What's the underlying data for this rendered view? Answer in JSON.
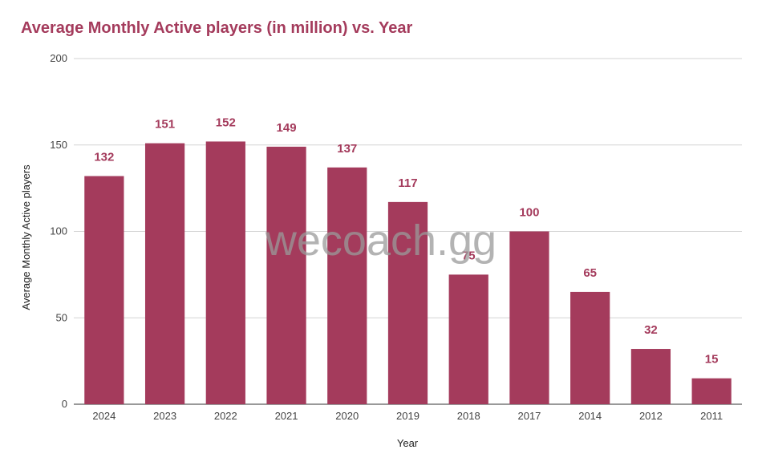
{
  "chart_data": {
    "type": "bar",
    "title": "Average Monthly Active players (in million) vs. Year",
    "xlabel": "Year",
    "ylabel": "Average Monthly Active players",
    "categories": [
      "2024",
      "2023",
      "2022",
      "2021",
      "2020",
      "2019",
      "2018",
      "2017",
      "2014",
      "2012",
      "2011"
    ],
    "values": [
      132,
      151,
      152,
      149,
      137,
      117,
      75,
      100,
      65,
      32,
      15
    ],
    "ylim": [
      0,
      200
    ],
    "yticks": [
      0,
      50,
      100,
      150,
      200
    ],
    "grid": true,
    "bar_color": "#a43b5c",
    "legend": "none"
  },
  "watermark": "wecoach.gg"
}
